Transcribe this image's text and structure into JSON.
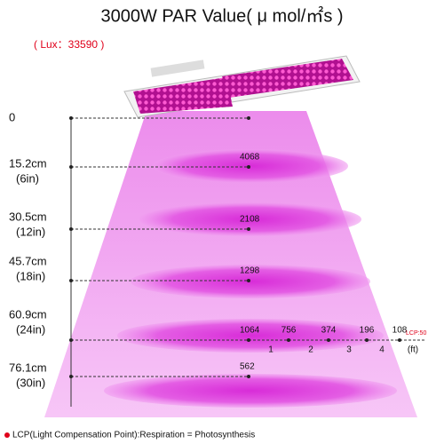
{
  "title": "3000W PAR Value( μ mol/㎡s )",
  "lux": "( Lux：33590 )",
  "levels": [
    {
      "distance": "0"
    },
    {
      "distance": "15.2cm",
      "distance_in": "(6in)",
      "par": 4068
    },
    {
      "distance": "30.5cm",
      "distance_in": "(12in)",
      "par": 2108
    },
    {
      "distance": "45.7cm",
      "distance_in": "(18in)",
      "par": 1298
    },
    {
      "distance": "60.9cm",
      "distance_in": "(24in)",
      "par": 1064,
      "spread": [
        756,
        374,
        196,
        108
      ],
      "spread_ticks": [
        "1",
        "2",
        "3",
        "4",
        "(ft)"
      ],
      "lcp": "LCP:50"
    },
    {
      "distance": "76.1cm",
      "distance_in": "(30in)",
      "par": 562
    }
  ],
  "footer": "LCP(Light Compensation Point):Respiration = Photosynthesis"
}
